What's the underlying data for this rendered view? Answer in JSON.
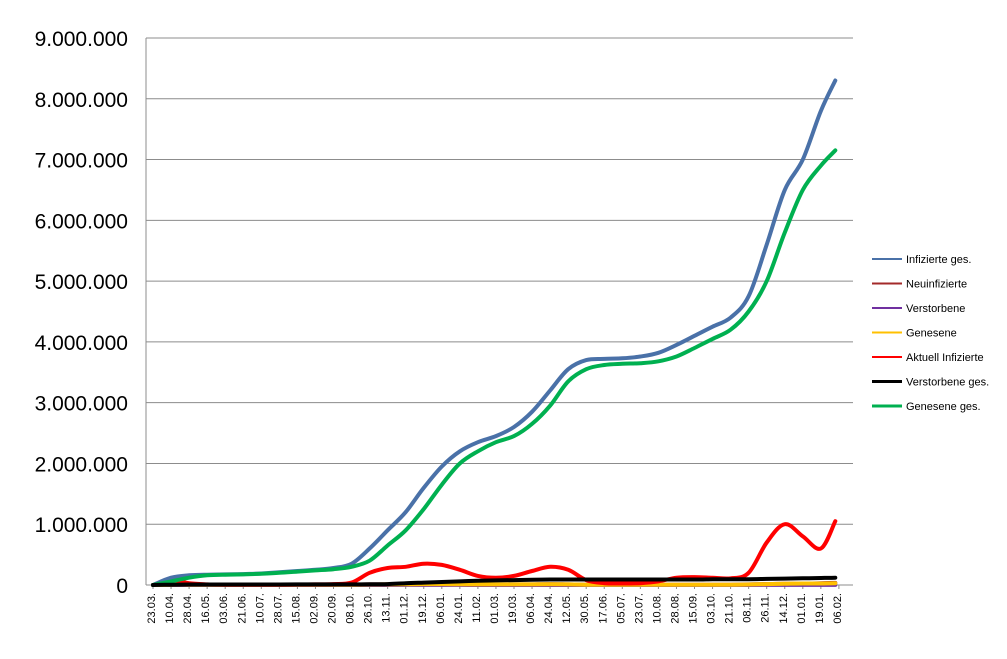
{
  "chart_data": {
    "type": "line",
    "title": "",
    "xlabel": "",
    "ylabel": "",
    "ylim": [
      0,
      9000000
    ],
    "yticks": [
      0,
      1000000,
      2000000,
      3000000,
      4000000,
      5000000,
      6000000,
      7000000,
      8000000,
      9000000
    ],
    "ytick_labels": [
      "0",
      "1.000.000",
      "2.000.000",
      "3.000.000",
      "4.000.000",
      "5.000.000",
      "6.000.000",
      "7.000.000",
      "8.000.000",
      "9.000.000"
    ],
    "x_tick_labels": [
      "23.03.",
      "10.04.",
      "28.04.",
      "16.05.",
      "03.06.",
      "21.06.",
      "10.07.",
      "28.07.",
      "15.08.",
      "02.09.",
      "20.09.",
      "08.10.",
      "26.10.",
      "13.11.",
      "01.12.",
      "19.12.",
      "06.01.",
      "24.01.",
      "11.02.",
      "01.03.",
      "19.03.",
      "06.04.",
      "24.04.",
      "12.05.",
      "30.05.",
      "17.06.",
      "05.07.",
      "23.07.",
      "10.08.",
      "28.08.",
      "15.09.",
      "03.10.",
      "21.10.",
      "08.11.",
      "26.11.",
      "14.12.",
      "01.01.",
      "19.01.",
      "06.02."
    ],
    "grid": true,
    "legend_position": "right",
    "x": [
      0,
      1,
      2,
      3,
      4,
      5,
      6,
      7,
      8,
      9,
      10,
      11,
      12,
      13,
      14,
      15,
      16,
      17,
      18,
      19,
      20,
      21,
      22,
      23,
      24,
      25,
      26,
      27,
      28,
      29,
      30,
      31,
      32,
      33,
      34,
      35,
      36,
      37,
      37.8
    ],
    "series": [
      {
        "name": "Infizierte ges.",
        "color": "#4a71a8",
        "values": [
          0,
          120000,
          160000,
          170000,
          175000,
          180000,
          190000,
          210000,
          230000,
          250000,
          280000,
          350000,
          600000,
          900000,
          1200000,
          1600000,
          1950000,
          2200000,
          2350000,
          2450000,
          2600000,
          2850000,
          3200000,
          3550000,
          3700000,
          3720000,
          3730000,
          3760000,
          3820000,
          3950000,
          4100000,
          4250000,
          4400000,
          4750000,
          5600000,
          6500000,
          7000000,
          7800000,
          8300000
        ]
      },
      {
        "name": "Neuinfizierte",
        "color": "#a32a2a",
        "values": [
          0,
          5000,
          5000,
          5000,
          5000,
          5000,
          5000,
          5000,
          5000,
          5000,
          5000,
          5000,
          10000,
          10000,
          15000,
          15000,
          15000,
          10000,
          10000,
          10000,
          10000,
          10000,
          15000,
          10000,
          5000,
          5000,
          5000,
          5000,
          5000,
          5000,
          5000,
          5000,
          5000,
          10000,
          15000,
          20000,
          20000,
          30000,
          35000
        ]
      },
      {
        "name": "Verstorbene",
        "color": "#7030a0",
        "values": [
          0,
          500,
          500,
          500,
          500,
          500,
          500,
          500,
          500,
          500,
          500,
          500,
          500,
          500,
          1000,
          1000,
          1000,
          1000,
          500,
          500,
          500,
          500,
          500,
          500,
          500,
          500,
          500,
          500,
          500,
          500,
          500,
          500,
          500,
          500,
          1000,
          1000,
          1000,
          1000,
          1000
        ]
      },
      {
        "name": "Genesene",
        "color": "#ffc000",
        "values": [
          0,
          5000,
          5000,
          5000,
          5000,
          5000,
          5000,
          5000,
          5000,
          5000,
          5000,
          5000,
          8000,
          10000,
          12000,
          15000,
          15000,
          12000,
          10000,
          10000,
          10000,
          10000,
          12000,
          10000,
          5000,
          5000,
          5000,
          5000,
          5000,
          5000,
          5000,
          5000,
          5000,
          8000,
          15000,
          20000,
          25000,
          25000,
          30000
        ]
      },
      {
        "name": "Aktuell Infizierte",
        "color": "#ff0000",
        "values": [
          0,
          80000,
          30000,
          10000,
          5000,
          5000,
          5000,
          5000,
          8000,
          10000,
          15000,
          40000,
          200000,
          280000,
          300000,
          350000,
          330000,
          250000,
          150000,
          120000,
          150000,
          230000,
          300000,
          250000,
          80000,
          30000,
          25000,
          30000,
          60000,
          120000,
          130000,
          120000,
          110000,
          200000,
          700000,
          1000000,
          800000,
          600000,
          1050000
        ]
      },
      {
        "name": "Verstorbene ges.",
        "color": "#000000",
        "values": [
          0,
          5000,
          8000,
          9000,
          9000,
          9000,
          9000,
          9000,
          9500,
          9500,
          10000,
          10000,
          12000,
          15000,
          30000,
          40000,
          50000,
          60000,
          70000,
          75000,
          80000,
          85000,
          90000,
          90000,
          90000,
          90000,
          90000,
          90000,
          90000,
          90000,
          90000,
          95000,
          95000,
          95000,
          100000,
          105000,
          110000,
          115000,
          120000
        ]
      },
      {
        "name": "Genesene ges.",
        "color": "#00b050",
        "values": [
          0,
          60000,
          120000,
          160000,
          170000,
          175000,
          185000,
          200000,
          220000,
          240000,
          260000,
          300000,
          400000,
          650000,
          900000,
          1250000,
          1650000,
          2000000,
          2200000,
          2350000,
          2450000,
          2650000,
          2950000,
          3350000,
          3550000,
          3620000,
          3640000,
          3650000,
          3680000,
          3760000,
          3900000,
          4050000,
          4200000,
          4500000,
          5000000,
          5800000,
          6500000,
          6900000,
          7150000
        ]
      }
    ]
  }
}
